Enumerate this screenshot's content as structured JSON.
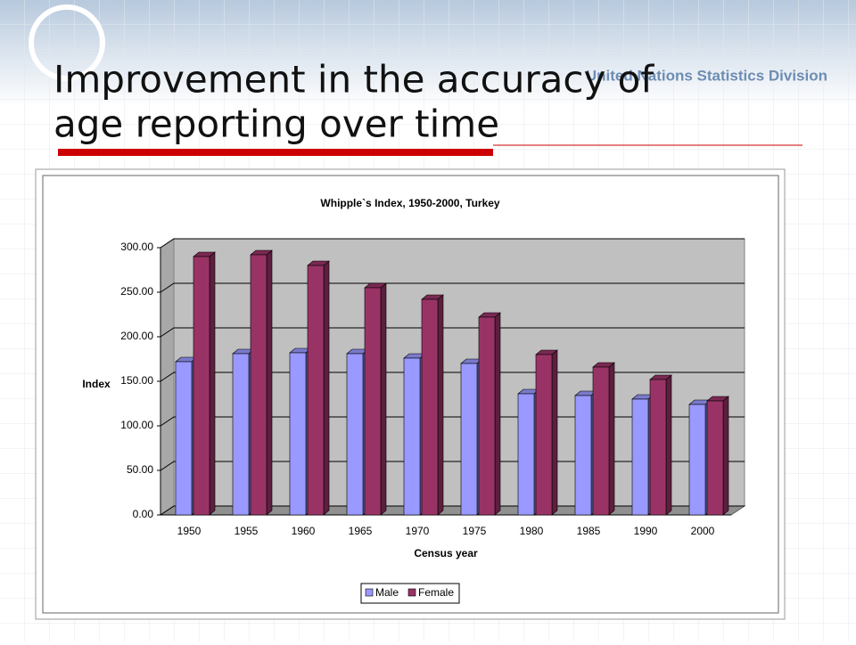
{
  "header": {
    "title_line1": "Improvement in the accuracy of",
    "title_line2": "age reporting over time",
    "organization": "United Nations Statistics Division"
  },
  "chart_data": {
    "type": "bar",
    "title": "Whipple`s Index, 1950-2000, Turkey",
    "x_label": "Census year",
    "y_label": "Index",
    "categories": [
      "1950",
      "1955",
      "1960",
      "1965",
      "1970",
      "1975",
      "1980",
      "1985",
      "1990",
      "2000"
    ],
    "series": [
      {
        "name": "Male",
        "color": "#9999ff",
        "values": [
          172,
          181,
          182,
          181,
          176,
          170,
          136,
          134,
          130,
          124
        ]
      },
      {
        "name": "Female",
        "color": "#993366",
        "values": [
          290,
          292,
          280,
          255,
          242,
          222,
          180,
          166,
          152,
          128
        ]
      }
    ],
    "ylim": [
      0,
      300
    ],
    "yticks": [
      {
        "value": 0,
        "label": "0.00"
      },
      {
        "value": 50,
        "label": "50.00"
      },
      {
        "value": 100,
        "label": "100.00"
      },
      {
        "value": 150,
        "label": "150.00"
      },
      {
        "value": 200,
        "label": "200.00"
      },
      {
        "value": 250,
        "label": "250.00"
      },
      {
        "value": 300,
        "label": "300.00"
      }
    ],
    "grid": true,
    "legend": "bottom"
  }
}
